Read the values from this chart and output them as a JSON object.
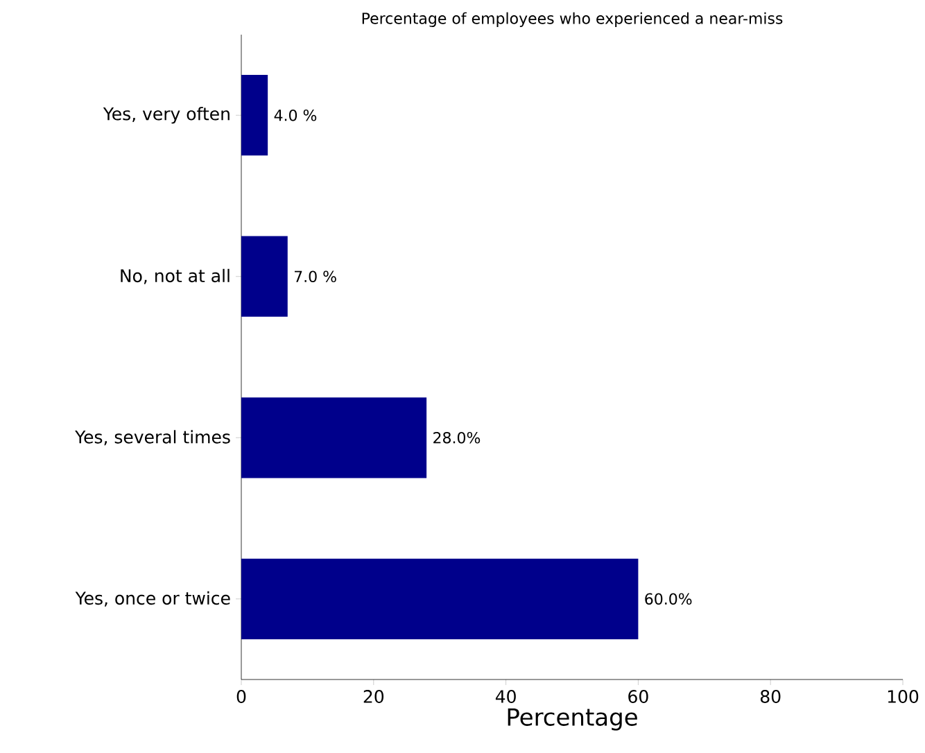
{
  "chart_data": {
    "type": "bar",
    "orientation": "horizontal",
    "title": "Percentage of employees who experienced a near-miss",
    "categories": [
      "Yes, very often",
      "No, not at all",
      "Yes, several times",
      "Yes, once or twice"
    ],
    "values": [
      4.0,
      7.0,
      28.0,
      60.0
    ],
    "value_labels": [
      "4.0  %",
      "7.0  %",
      "28.0%",
      "60.0%"
    ],
    "color": "#00008b",
    "xlabel": "Percentage",
    "xlim": [
      0,
      100
    ],
    "xticks": [
      0,
      20,
      40,
      60,
      80,
      100
    ]
  }
}
